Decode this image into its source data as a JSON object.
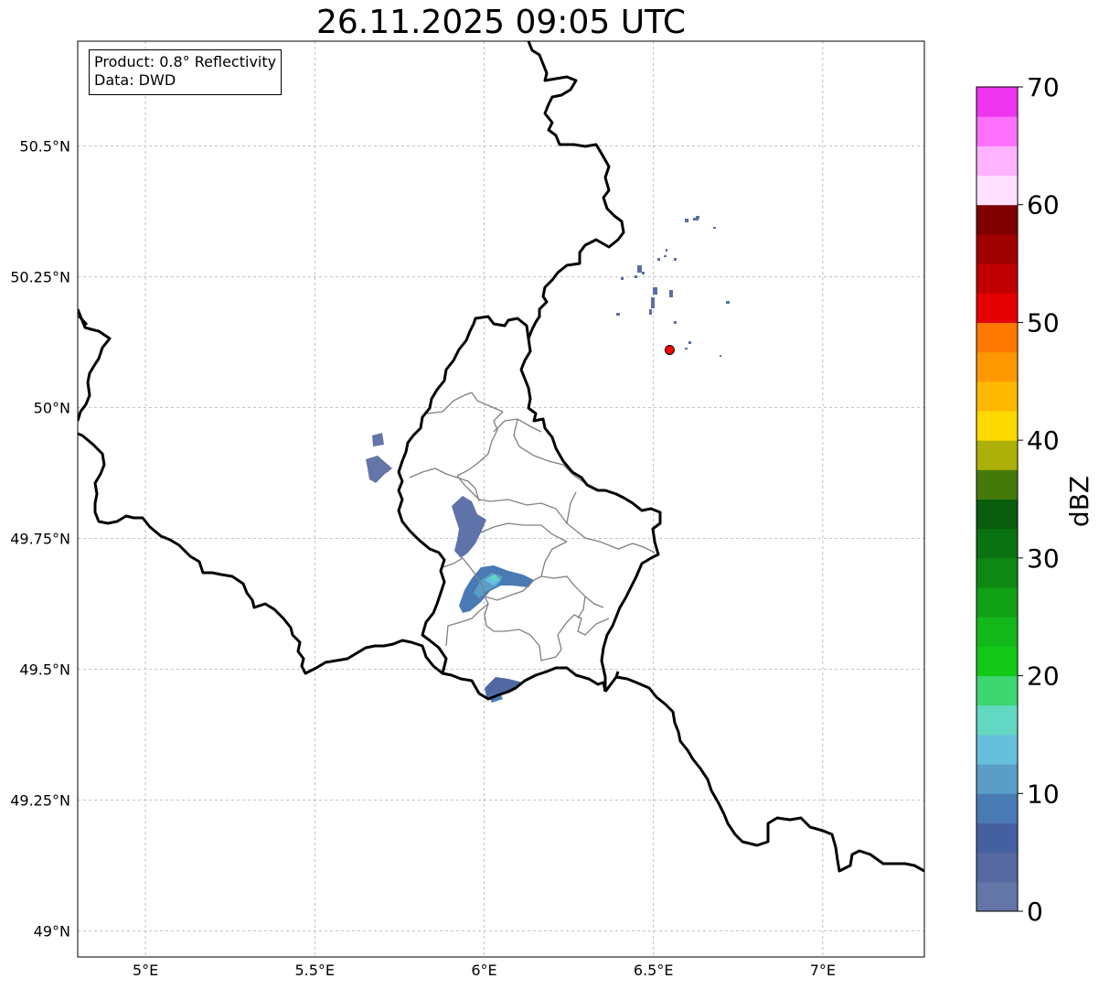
{
  "title": "26.11.2025 09:05 UTC",
  "info": {
    "product_line": "Product: 0.8° Reflectivity",
    "data_line": "Data: DWD"
  },
  "axes": {
    "lon_ticks": [
      "5°E",
      "5.5°E",
      "6°E",
      "6.5°E",
      "7°E"
    ],
    "lat_ticks": [
      "50.5°N",
      "50.25°N",
      "50°N",
      "49.75°N",
      "49.5°N",
      "49.25°N",
      "49°N"
    ],
    "lon_range": [
      4.8,
      7.3
    ],
    "lat_range": [
      48.95,
      50.7
    ],
    "grid": true
  },
  "colorbar": {
    "label": "dBZ",
    "min": 0,
    "max": 70,
    "tick_labels": [
      "0",
      "10",
      "20",
      "30",
      "40",
      "50",
      "60",
      "70"
    ],
    "colors": [
      "#6475a8",
      "#5568a0",
      "#4560a0",
      "#4a7ab4",
      "#5a9ec8",
      "#66c0dc",
      "#62d8c2",
      "#3ed670",
      "#14c818",
      "#12b81a",
      "#10a016",
      "#0e8812",
      "#0a7210",
      "#085c0c",
      "#457a0a",
      "#acb008",
      "#fed900",
      "#feb800",
      "#fe9800",
      "#fe7800",
      "#e40000",
      "#c00000",
      "#a00000",
      "#7e0000",
      "#ffe0fe",
      "#ffb2fe",
      "#ff70fe",
      "#ee34ee"
    ]
  },
  "radar_site": {
    "lon": 6.548,
    "lat": 50.11,
    "color": "#ff0000"
  },
  "reflectivity_areas": [
    {
      "name": "cluster-west-belgium",
      "dbz": 3
    },
    {
      "name": "cluster-north-luxembourg",
      "dbz": 3
    },
    {
      "name": "cluster-central-luxembourg",
      "dbz": 9
    },
    {
      "name": "cluster-south-border",
      "dbz": 5
    },
    {
      "name": "scattered-eifel",
      "dbz": 2
    }
  ]
}
